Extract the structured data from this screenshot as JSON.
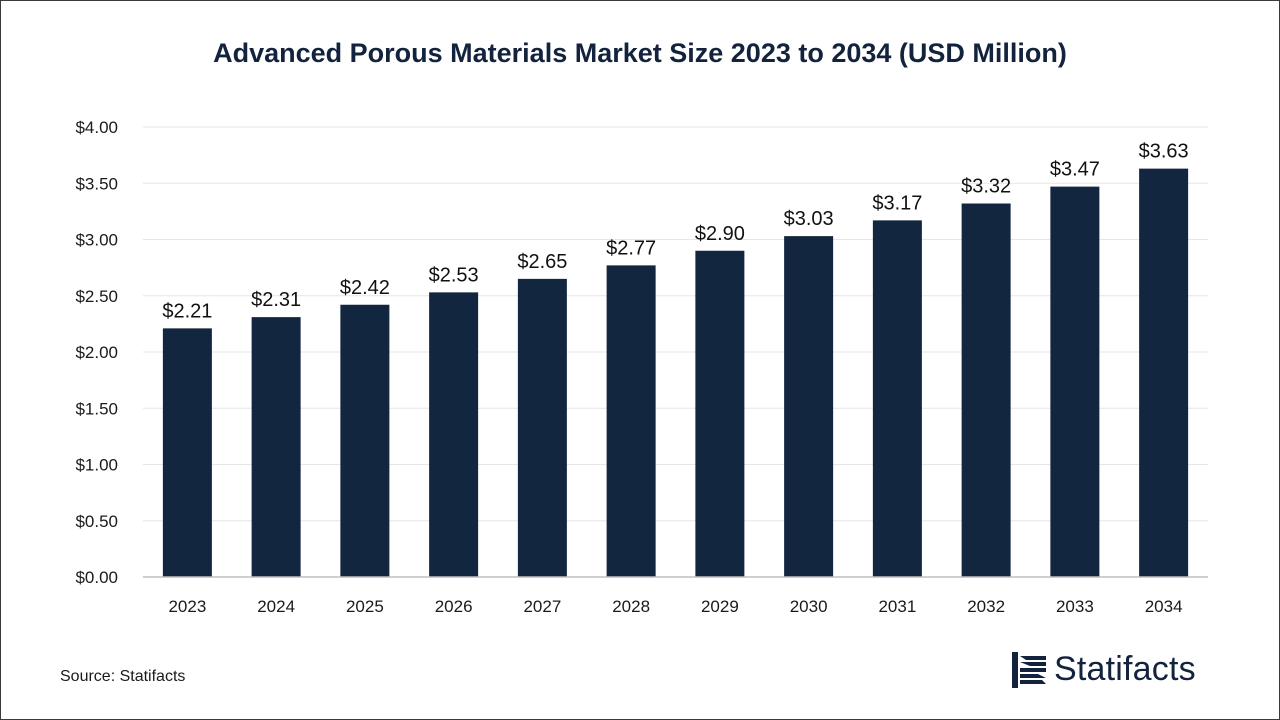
{
  "chart_data": {
    "type": "bar",
    "title": "Advanced Porous Materials Market Size 2023 to 2034 (USD Million)",
    "categories": [
      "2023",
      "2024",
      "2025",
      "2026",
      "2027",
      "2028",
      "2029",
      "2030",
      "2031",
      "2032",
      "2033",
      "2034"
    ],
    "values": [
      2.21,
      2.31,
      2.42,
      2.53,
      2.65,
      2.77,
      2.9,
      3.03,
      3.17,
      3.32,
      3.47,
      3.63
    ],
    "data_labels": [
      "$2.21",
      "$2.31",
      "$2.42",
      "$2.53",
      "$2.65",
      "$2.77",
      "$2.90",
      "$3.03",
      "$3.17",
      "$3.32",
      "$3.47",
      "$3.63"
    ],
    "yticks": [
      0,
      0.5,
      1,
      1.5,
      2,
      2.5,
      3,
      3.5,
      4
    ],
    "ytick_labels": [
      "$0.00",
      "$0.50",
      "$1.00",
      "$1.50",
      "$2.00",
      "$2.50",
      "$3.00",
      "$3.50",
      "$4.00"
    ],
    "ylim": [
      0,
      4
    ],
    "xlabel": "",
    "ylabel": "",
    "grid": true,
    "bar_color": "#13263f"
  },
  "footer": {
    "source": "Source: Statifacts",
    "brand": "Statifacts"
  },
  "colors": {
    "title": "#13233d",
    "brand": "#13233d",
    "grid": "#e6e6e6"
  }
}
